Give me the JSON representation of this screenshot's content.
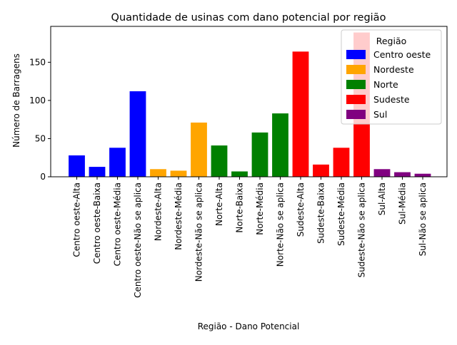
{
  "chart_data": {
    "type": "bar",
    "title": "Quantidade de usinas com dano potencial por região",
    "xlabel": "Região - Dano Potencial",
    "ylabel": "Número de Barragens",
    "ylim": [
      0,
      197
    ],
    "yticks": [
      0,
      50,
      100,
      150
    ],
    "grid": false,
    "legend": {
      "title": "Região",
      "placement": "top-right",
      "entries": [
        {
          "name": "Centro oeste",
          "color": "#0000ff"
        },
        {
          "name": "Nordeste",
          "color": "#ffa500"
        },
        {
          "name": "Norte",
          "color": "#008000"
        },
        {
          "name": "Sudeste",
          "color": "#ff0000"
        },
        {
          "name": "Sul",
          "color": "#800080"
        }
      ]
    },
    "categories": [
      "Centro oeste-Alta",
      "Centro oeste-Baixa",
      "Centro oeste-Média",
      "Centro oeste-Não se aplica",
      "Nordeste-Alta",
      "Nordeste-Média",
      "Nordeste-Não se aplica",
      "Norte-Alta",
      "Norte-Baixa",
      "Norte-Média",
      "Norte-Não se aplica",
      "Sudeste-Alta",
      "Sudeste-Baixa",
      "Sudeste-Média",
      "Sudeste-Não se aplica",
      "Sul-Alta",
      "Sul-Média",
      "Sul-Não se aplica"
    ],
    "values": [
      28,
      13,
      38,
      112,
      10,
      8,
      71,
      41,
      7,
      58,
      83,
      164,
      16,
      38,
      189,
      10,
      6,
      4
    ],
    "bar_colors": [
      "#0000ff",
      "#0000ff",
      "#0000ff",
      "#0000ff",
      "#ffa500",
      "#ffa500",
      "#ffa500",
      "#008000",
      "#008000",
      "#008000",
      "#008000",
      "#ff0000",
      "#ff0000",
      "#ff0000",
      "#ff0000",
      "#800080",
      "#800080",
      "#800080"
    ]
  }
}
